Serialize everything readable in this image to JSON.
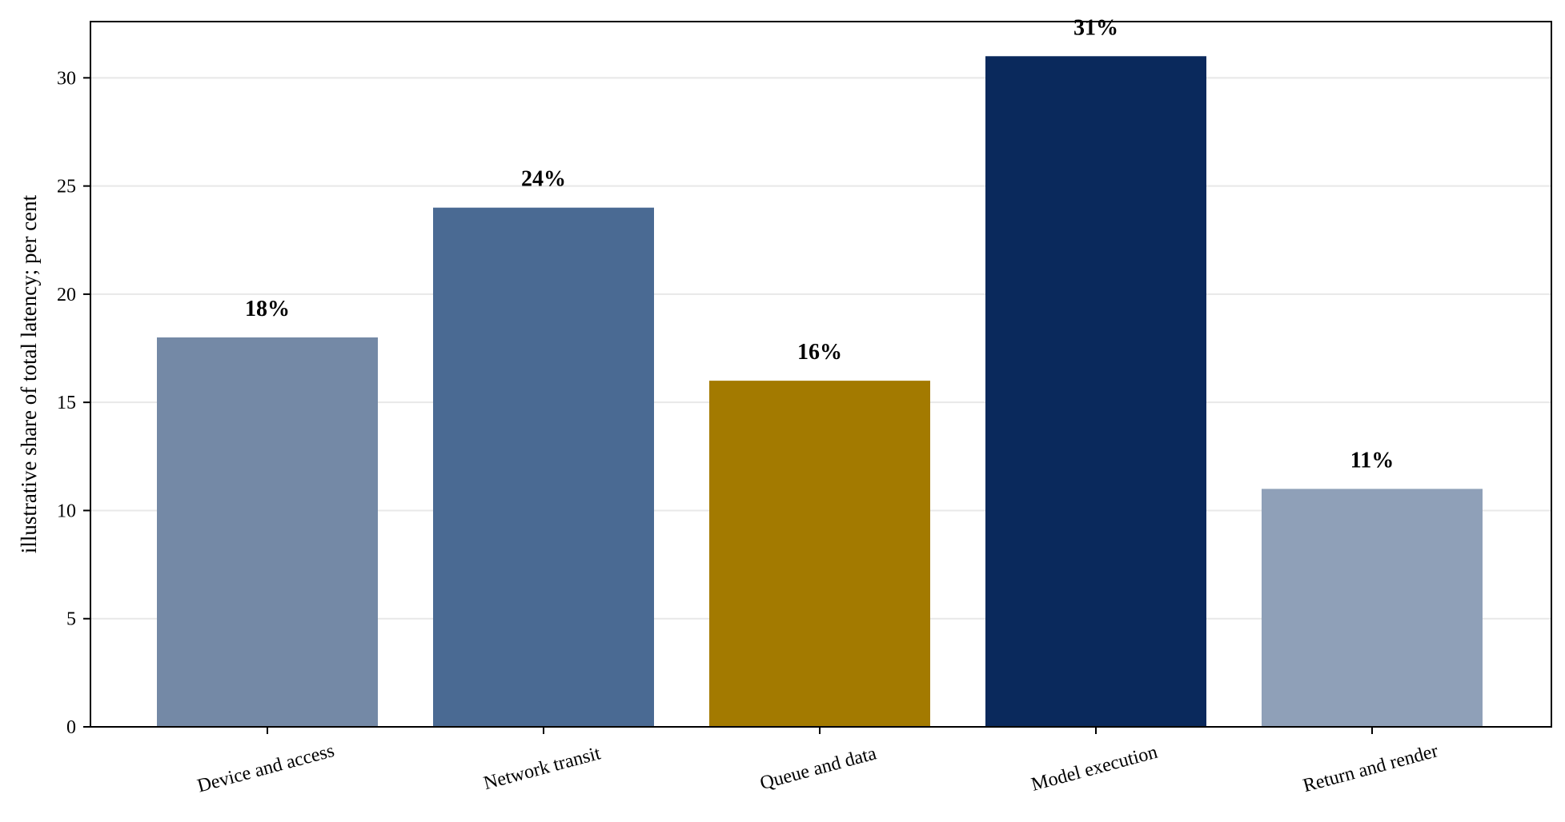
{
  "chart_data": {
    "type": "bar",
    "categories": [
      "Device and access",
      "Network transit",
      "Queue and data",
      "Model execution",
      "Return and render"
    ],
    "values": [
      18,
      24,
      16,
      31,
      11
    ],
    "data_labels": [
      "18%",
      "24%",
      "16%",
      "31%",
      "11%"
    ],
    "bar_colors": [
      "#7489a6",
      "#4a6a93",
      "#a37a00",
      "#0a295c",
      "#8fa0b8"
    ],
    "title": "",
    "xlabel": "",
    "ylabel": "illustrative share of total latency; per cent",
    "ylim": [
      0,
      32.6
    ],
    "yticks": [
      0,
      5,
      10,
      15,
      20,
      25,
      30
    ],
    "grid": "horizontal",
    "legend": "none"
  }
}
